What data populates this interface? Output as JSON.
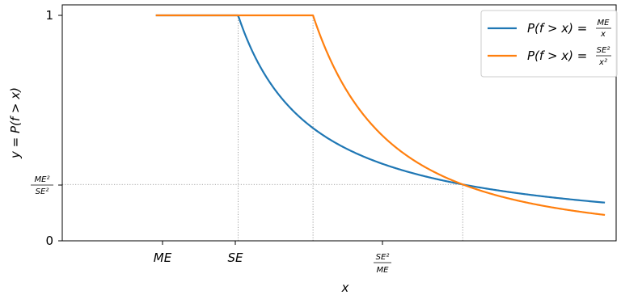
{
  "chart_data": {
    "type": "line",
    "xlabel": "x",
    "ylabel": "y = P(f > x)",
    "x_ticks": [
      {
        "id": "me",
        "label": "ME",
        "value": 1
      },
      {
        "id": "se",
        "label": "SE",
        "value": 2
      },
      {
        "id": "se2me",
        "label_num": "SE²",
        "label_den": "ME",
        "value": 4
      }
    ],
    "y_ticks": [
      {
        "id": "zero",
        "label": "0",
        "value": 0
      },
      {
        "id": "ratio",
        "label_num": "ME²",
        "label_den": "SE²",
        "value": 0.25
      },
      {
        "id": "one",
        "label": "1",
        "value": 1
      }
    ],
    "xlim": [
      -1.35,
      6.05
    ],
    "ylim": [
      0,
      1
    ],
    "x_range": [
      -0.1,
      5.9
    ],
    "grid": "dotted reference lines at ME, SE, SE²/ME and ME²/SE²",
    "legend_position": "top-right",
    "series": [
      {
        "name_prefix": "P(f > x) = ",
        "name_num": "ME",
        "name_den": "x",
        "color": "#1f77b4",
        "threshold": 1,
        "power": 1,
        "scale": 1
      },
      {
        "name_prefix": "P(f > x) = ",
        "name_num": "SE²",
        "name_den": "x²",
        "color": "#ff7f0e",
        "threshold": 2,
        "power": 2,
        "scale": 2
      }
    ]
  }
}
